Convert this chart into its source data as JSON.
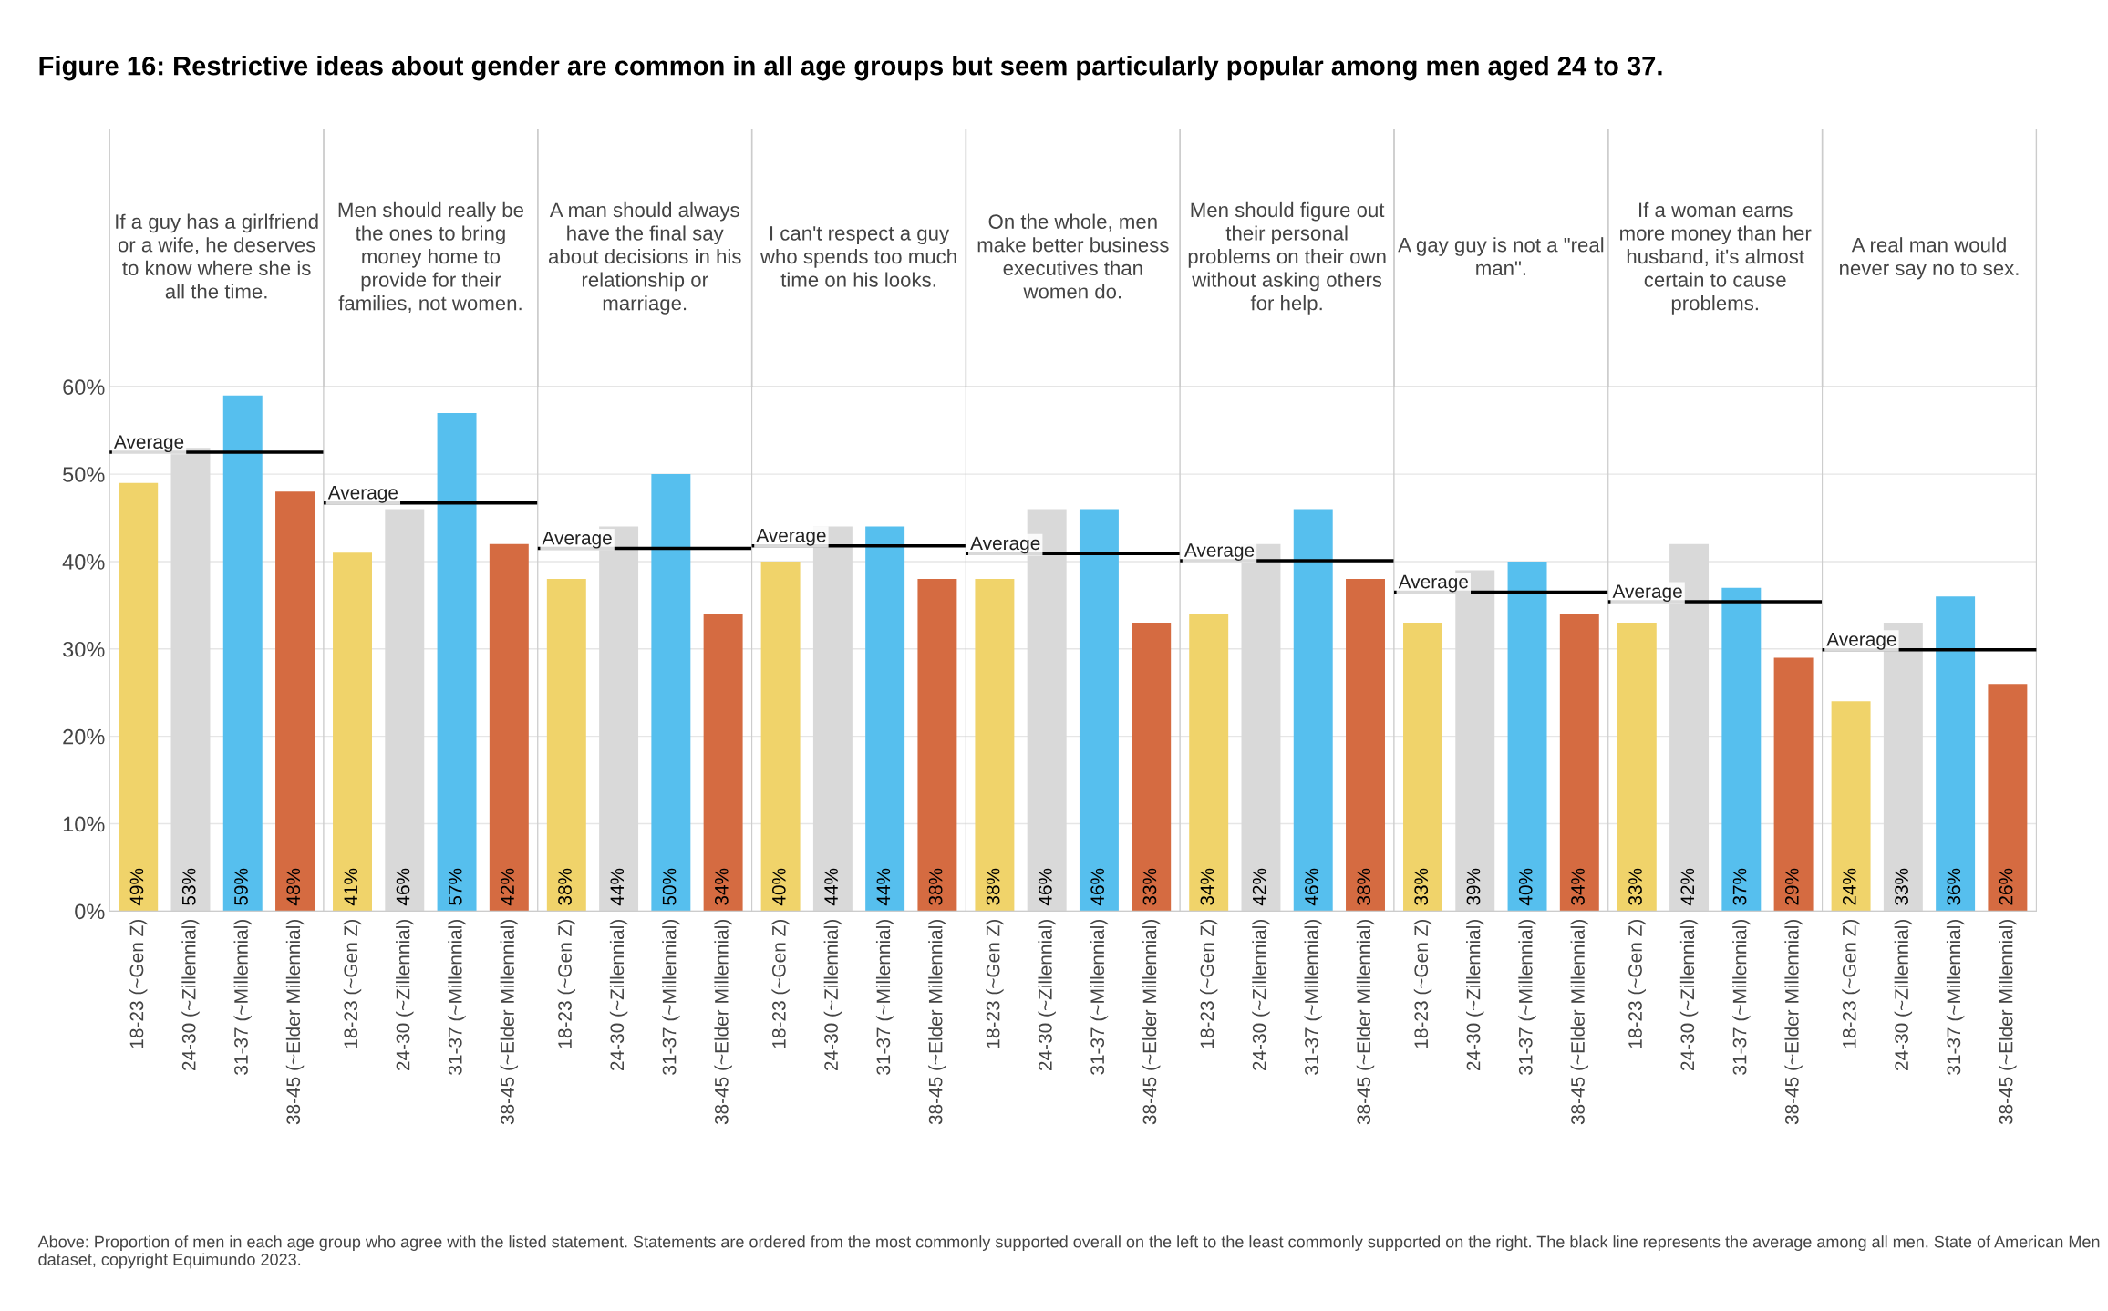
{
  "chart_data": [
    {
      "type": "bar",
      "title": "If a guy has a girlfriend or a wife, he deserves to know where she is all the time.",
      "categories": [
        "18-23 (~Gen Z)",
        "24-30 (~Zillennial)",
        "31-37 (~Millennial)",
        "38-45 (~Elder Millennial)"
      ],
      "values": [
        49,
        53,
        59,
        48
      ],
      "value_labels": [
        "49%",
        "53%",
        "59%",
        "48%"
      ],
      "colors": [
        "#f0d36a",
        "#d9d9d9",
        "#56bfee",
        "#d56b41"
      ],
      "ylim": [
        0,
        60
      ],
      "yticks": [
        {
          "value": 0,
          "label": "0%"
        },
        {
          "value": 10,
          "label": "10%"
        },
        {
          "value": 20,
          "label": "20%"
        },
        {
          "value": 30,
          "label": "30%"
        },
        {
          "value": 40,
          "label": "40%"
        },
        {
          "value": 50,
          "label": "50%"
        },
        {
          "value": 60,
          "label": "60%"
        }
      ],
      "grid": "y",
      "ref_lines": [
        {
          "axis": "y",
          "value": 52.5,
          "label": "Average",
          "color": "#000000"
        }
      ],
      "annotations": [
        "Figure 16: Restrictive ideas about gender are common in all age groups but seem particularly popular among men aged 24 to 37.",
        "Above: Proportion of men in each age group who agree with the listed statement. Statements are ordered from the most commonly supported overall on the left to the least commonly supported on the right. The black line represents the average among all men. State of American Men dataset, copyright Equimundo 2023."
      ]
    },
    {
      "type": "bar",
      "title": "Men should really be the ones to bring money home to provide for their families, not women.",
      "categories": [
        "18-23 (~Gen Z)",
        "24-30 (~Zillennial)",
        "31-37 (~Millennial)",
        "38-45 (~Elder Millennial)"
      ],
      "values": [
        41,
        46,
        57,
        42
      ],
      "value_labels": [
        "41%",
        "46%",
        "57%",
        "42%"
      ],
      "colors": [
        "#f0d36a",
        "#d9d9d9",
        "#56bfee",
        "#d56b41"
      ],
      "ylim": [
        0,
        60
      ],
      "yticks": [
        0,
        10,
        20,
        30,
        40,
        50,
        60
      ],
      "grid": "y",
      "tick_labels": "x",
      "ref_lines": [
        {
          "axis": "y",
          "value": 46.7,
          "label": "Average",
          "color": "#000000"
        }
      ]
    },
    {
      "type": "bar",
      "title": "A man should always have the final say about decisions in his relationship or marriage.",
      "categories": [
        "18-23 (~Gen Z)",
        "24-30 (~Zillennial)",
        "31-37 (~Millennial)",
        "38-45 (~Elder Millennial)"
      ],
      "values": [
        38,
        44,
        50,
        34
      ],
      "value_labels": [
        "38%",
        "44%",
        "50%",
        "34%"
      ],
      "colors": [
        "#f0d36a",
        "#d9d9d9",
        "#56bfee",
        "#d56b41"
      ],
      "ylim": [
        0,
        60
      ],
      "yticks": [
        0,
        10,
        20,
        30,
        40,
        50,
        60
      ],
      "grid": "y",
      "tick_labels": "x",
      "ref_lines": [
        {
          "axis": "y",
          "value": 41.5,
          "label": "Average",
          "color": "#000000"
        }
      ]
    },
    {
      "type": "bar",
      "title": "I can't respect a guy who spends too much time on his looks.",
      "categories": [
        "18-23 (~Gen Z)",
        "24-30 (~Zillennial)",
        "31-37 (~Millennial)",
        "38-45 (~Elder Millennial)"
      ],
      "values": [
        40,
        44,
        44,
        38
      ],
      "value_labels": [
        "40%",
        "44%",
        "44%",
        "38%"
      ],
      "colors": [
        "#f0d36a",
        "#d9d9d9",
        "#56bfee",
        "#d56b41"
      ],
      "ylim": [
        0,
        60
      ],
      "yticks": [
        0,
        10,
        20,
        30,
        40,
        50,
        60
      ],
      "grid": "y",
      "tick_labels": "x",
      "ref_lines": [
        {
          "axis": "y",
          "value": 41.8,
          "label": "Average",
          "color": "#000000"
        }
      ]
    },
    {
      "type": "bar",
      "title": "On the whole, men make better business executives than women do.",
      "categories": [
        "18-23 (~Gen Z)",
        "24-30 (~Zillennial)",
        "31-37 (~Millennial)",
        "38-45 (~Elder Millennial)"
      ],
      "values": [
        38,
        46,
        46,
        33
      ],
      "value_labels": [
        "38%",
        "46%",
        "46%",
        "33%"
      ],
      "colors": [
        "#f0d36a",
        "#d9d9d9",
        "#56bfee",
        "#d56b41"
      ],
      "ylim": [
        0,
        60
      ],
      "yticks": [
        0,
        10,
        20,
        30,
        40,
        50,
        60
      ],
      "grid": "y",
      "tick_labels": "x",
      "ref_lines": [
        {
          "axis": "y",
          "value": 40.9,
          "label": "Average",
          "color": "#000000"
        }
      ]
    },
    {
      "type": "bar",
      "title": "Men should figure out their personal problems on their own without asking others for help.",
      "categories": [
        "18-23 (~Gen Z)",
        "24-30 (~Zillennial)",
        "31-37 (~Millennial)",
        "38-45 (~Elder Millennial)"
      ],
      "values": [
        34,
        42,
        46,
        38
      ],
      "value_labels": [
        "34%",
        "42%",
        "46%",
        "38%"
      ],
      "colors": [
        "#f0d36a",
        "#d9d9d9",
        "#56bfee",
        "#d56b41"
      ],
      "ylim": [
        0,
        60
      ],
      "yticks": [
        0,
        10,
        20,
        30,
        40,
        50,
        60
      ],
      "grid": "y",
      "tick_labels": "x",
      "ref_lines": [
        {
          "axis": "y",
          "value": 40.1,
          "label": "Average",
          "color": "#000000"
        }
      ]
    },
    {
      "type": "bar",
      "title": "A gay guy is not a \"real man\".",
      "categories": [
        "18-23 (~Gen Z)",
        "24-30 (~Zillennial)",
        "31-37 (~Millennial)",
        "38-45 (~Elder Millennial)"
      ],
      "values": [
        33,
        39,
        40,
        34
      ],
      "value_labels": [
        "33%",
        "39%",
        "40%",
        "34%"
      ],
      "colors": [
        "#f0d36a",
        "#d9d9d9",
        "#56bfee",
        "#d56b41"
      ],
      "ylim": [
        0,
        60
      ],
      "yticks": [
        0,
        10,
        20,
        30,
        40,
        50,
        60
      ],
      "grid": "y",
      "tick_labels": "x",
      "ref_lines": [
        {
          "axis": "y",
          "value": 36.5,
          "label": "Average",
          "color": "#000000"
        }
      ]
    },
    {
      "type": "bar",
      "title": "If a woman earns more money than her husband, it's almost certain to cause problems.",
      "categories": [
        "18-23 (~Gen Z)",
        "24-30 (~Zillennial)",
        "31-37 (~Millennial)",
        "38-45 (~Elder Millennial)"
      ],
      "values": [
        33,
        42,
        37,
        29
      ],
      "value_labels": [
        "33%",
        "42%",
        "37%",
        "29%"
      ],
      "colors": [
        "#f0d36a",
        "#d9d9d9",
        "#56bfee",
        "#d56b41"
      ],
      "ylim": [
        0,
        60
      ],
      "yticks": [
        0,
        10,
        20,
        30,
        40,
        50,
        60
      ],
      "grid": "y",
      "tick_labels": "x",
      "ref_lines": [
        {
          "axis": "y",
          "value": 35.4,
          "label": "Average",
          "color": "#000000"
        }
      ]
    },
    {
      "type": "bar",
      "title": "A real man would never say no to sex.",
      "categories": [
        "18-23 (~Gen Z)",
        "24-30 (~Zillennial)",
        "31-37 (~Millennial)",
        "38-45 (~Elder Millennial)"
      ],
      "values": [
        24,
        33,
        36,
        26
      ],
      "value_labels": [
        "24%",
        "33%",
        "36%",
        "26%"
      ],
      "colors": [
        "#f0d36a",
        "#d9d9d9",
        "#56bfee",
        "#d56b41"
      ],
      "ylim": [
        0,
        60
      ],
      "yticks": [
        0,
        10,
        20,
        30,
        40,
        50,
        60
      ],
      "grid": "y",
      "tick_labels": "x",
      "ref_lines": [
        {
          "axis": "y",
          "value": 29.9,
          "label": "Average",
          "color": "#000000"
        }
      ]
    }
  ]
}
